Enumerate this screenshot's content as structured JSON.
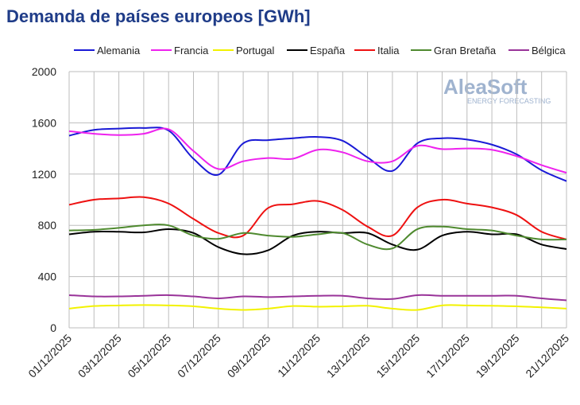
{
  "chart_data": {
    "type": "line",
    "title": "Demanda de países europeos [GWh]",
    "watermark": [
      "AleaSoft",
      "ENERGY FORECASTING"
    ],
    "categories": [
      "01/12/2025",
      null,
      "03/12/2025",
      null,
      "05/12/2025",
      null,
      "07/12/2025",
      null,
      "09/12/2025",
      null,
      "11/12/2025",
      null,
      "13/12/2025",
      null,
      "15/12/2025",
      null,
      "17/12/2025",
      null,
      "19/12/2025",
      null,
      "21/12/2025"
    ],
    "ylim": [
      0,
      2000
    ],
    "yticks": [
      0,
      400,
      800,
      1200,
      1600,
      2000
    ],
    "grid": true,
    "legend": "top",
    "series": [
      {
        "name": "Alemania",
        "color": "#1a1ad6",
        "values": [
          1500,
          1545,
          1555,
          1560,
          1540,
          1320,
          1195,
          1440,
          1465,
          1480,
          1490,
          1460,
          1330,
          1225,
          1440,
          1480,
          1470,
          1430,
          1354,
          1230,
          1145
        ]
      },
      {
        "name": "Francia",
        "color": "#ee22ee",
        "values": [
          1535,
          1515,
          1505,
          1515,
          1550,
          1380,
          1240,
          1300,
          1325,
          1320,
          1390,
          1370,
          1300,
          1300,
          1420,
          1395,
          1400,
          1390,
          1340,
          1270,
          1210
        ]
      },
      {
        "name": "Portugal",
        "color": "#f2f200",
        "values": [
          150,
          170,
          175,
          178,
          175,
          168,
          150,
          140,
          150,
          170,
          165,
          168,
          172,
          150,
          140,
          175,
          175,
          172,
          168,
          160,
          150
        ]
      },
      {
        "name": "España",
        "color": "#000000",
        "values": [
          730,
          750,
          750,
          745,
          770,
          740,
          630,
          575,
          605,
          720,
          750,
          740,
          740,
          650,
          610,
          720,
          750,
          730,
          730,
          650,
          615
        ]
      },
      {
        "name": "Italia",
        "color": "#ee1111",
        "values": [
          960,
          1000,
          1010,
          1020,
          970,
          850,
          740,
          720,
          935,
          965,
          990,
          920,
          790,
          720,
          940,
          1000,
          970,
          940,
          880,
          750,
          690
        ]
      },
      {
        "name": "Gran Bretaña",
        "color": "#4f8a2f",
        "values": [
          760,
          765,
          780,
          800,
          800,
          720,
          695,
          740,
          720,
          710,
          730,
          740,
          650,
          620,
          770,
          790,
          770,
          760,
          720,
          690,
          690
        ]
      },
      {
        "name": "Bélgica",
        "color": "#993399",
        "values": [
          255,
          245,
          245,
          250,
          255,
          245,
          230,
          245,
          240,
          245,
          250,
          250,
          230,
          225,
          255,
          250,
          250,
          250,
          250,
          230,
          215
        ]
      }
    ]
  }
}
